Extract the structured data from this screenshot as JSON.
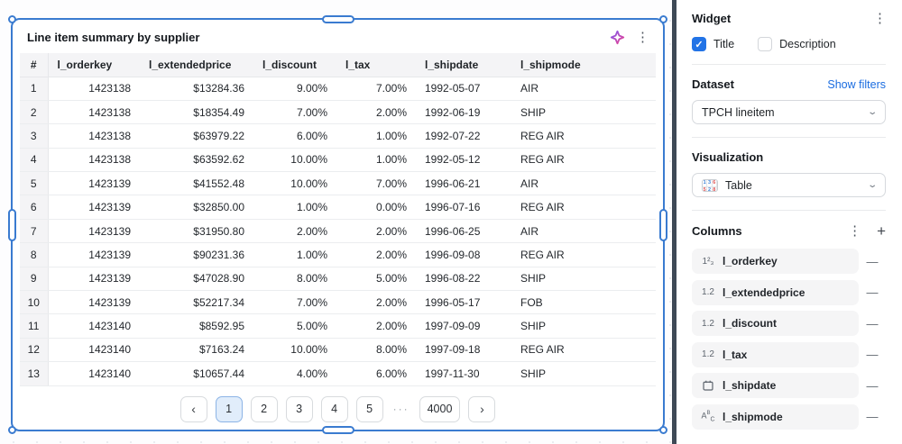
{
  "widget": {
    "title": "Line item summary by supplier"
  },
  "table": {
    "columns": [
      {
        "label": "#",
        "align": "center"
      },
      {
        "label": "l_orderkey",
        "align": "right"
      },
      {
        "label": "l_extendedprice",
        "align": "right"
      },
      {
        "label": "l_discount",
        "align": "right"
      },
      {
        "label": "l_tax",
        "align": "right"
      },
      {
        "label": "l_shipdate",
        "align": "left"
      },
      {
        "label": "l_shipmode",
        "align": "left"
      }
    ],
    "rows": [
      [
        "1",
        "1423138",
        "$13284.36",
        "9.00%",
        "7.00%",
        "1992-05-07",
        "AIR"
      ],
      [
        "2",
        "1423138",
        "$18354.49",
        "7.00%",
        "2.00%",
        "1992-06-19",
        "SHIP"
      ],
      [
        "3",
        "1423138",
        "$63979.22",
        "6.00%",
        "1.00%",
        "1992-07-22",
        "REG AIR"
      ],
      [
        "4",
        "1423138",
        "$63592.62",
        "10.00%",
        "1.00%",
        "1992-05-12",
        "REG AIR"
      ],
      [
        "5",
        "1423139",
        "$41552.48",
        "10.00%",
        "7.00%",
        "1996-06-21",
        "AIR"
      ],
      [
        "6",
        "1423139",
        "$32850.00",
        "1.00%",
        "0.00%",
        "1996-07-16",
        "REG AIR"
      ],
      [
        "7",
        "1423139",
        "$31950.80",
        "2.00%",
        "2.00%",
        "1996-06-25",
        "AIR"
      ],
      [
        "8",
        "1423139",
        "$90231.36",
        "1.00%",
        "2.00%",
        "1996-09-08",
        "REG AIR"
      ],
      [
        "9",
        "1423139",
        "$47028.90",
        "8.00%",
        "5.00%",
        "1996-08-22",
        "SHIP"
      ],
      [
        "10",
        "1423139",
        "$52217.34",
        "7.00%",
        "2.00%",
        "1996-05-17",
        "FOB"
      ],
      [
        "11",
        "1423140",
        "$8592.95",
        "5.00%",
        "2.00%",
        "1997-09-09",
        "SHIP"
      ],
      [
        "12",
        "1423140",
        "$7163.24",
        "10.00%",
        "8.00%",
        "1997-09-18",
        "REG AIR"
      ],
      [
        "13",
        "1423140",
        "$10657.44",
        "4.00%",
        "6.00%",
        "1997-11-30",
        "SHIP"
      ]
    ]
  },
  "pagination": {
    "prev_label": "‹",
    "pages": [
      "1",
      "2",
      "3",
      "4",
      "5"
    ],
    "active_page": "1",
    "ellipsis": "···",
    "last_page": "4000",
    "next_label": "›"
  },
  "sidebar": {
    "widget_section": {
      "heading": "Widget",
      "title_checkbox": {
        "label": "Title",
        "checked": true
      },
      "description_checkbox": {
        "label": "Description",
        "checked": false
      }
    },
    "dataset_section": {
      "heading": "Dataset",
      "link_label": "Show filters",
      "selected": "TPCH lineitem"
    },
    "visualization_section": {
      "heading": "Visualization",
      "selected": "Table"
    },
    "columns_section": {
      "heading": "Columns",
      "items": [
        {
          "type": "integer",
          "name": "l_orderkey"
        },
        {
          "type": "decimal",
          "name": "l_extendedprice"
        },
        {
          "type": "decimal",
          "name": "l_discount"
        },
        {
          "type": "decimal",
          "name": "l_tax"
        },
        {
          "type": "date",
          "name": "l_shipdate"
        },
        {
          "type": "text",
          "name": "l_shipmode"
        }
      ]
    }
  },
  "colors": {
    "selection_blue": "#3a7bd0",
    "checkbox_blue": "#2273e6",
    "link_blue": "#1a6ce0",
    "active_page_bg": "#e1edfb",
    "divider_dark": "#3e4956",
    "header_gray": "#f4f4f6"
  }
}
